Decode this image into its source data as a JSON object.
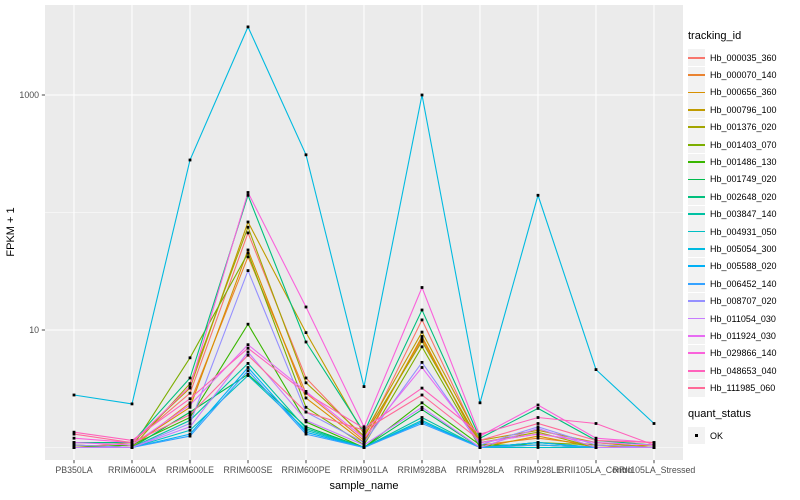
{
  "chart_data": {
    "type": "line",
    "title": "",
    "x_axis": {
      "label": "sample_name",
      "categories": [
        "PB350LA",
        "RRIM600LA",
        "RRIM600LE",
        "RRIM600SE",
        "RRIM600PE",
        "RRIM901LA",
        "RRIM928BA",
        "RRIM928LA",
        "RRIM928LE",
        "RRII105LA_Control",
        "RRII105LA_Stressed"
      ]
    },
    "y_axis": {
      "label": "FPKM + 1",
      "scale": "log10",
      "ticks": [
        {
          "label": "1000",
          "value": 1000
        },
        {
          "label": "10",
          "value": 10
        }
      ],
      "minor_gridlines": [
        100,
        1
      ],
      "range_approx": [
        0.8,
        5800
      ]
    },
    "legend": {
      "title": "tracking_id",
      "position": "right"
    },
    "legend2": {
      "title": "quant_status",
      "items": [
        {
          "label": "OK",
          "marker": "black-square"
        }
      ]
    },
    "panel_background": "#EBEBEB",
    "gridline_color": "#FFFFFF",
    "point_color": "#000000",
    "tick_label_color": "#4D4D4D",
    "series": [
      {
        "name": "Hb_000035_360",
        "color": "#F8766D",
        "values": [
          1.0,
          1.1,
          2.9,
          67,
          3.9,
          1.2,
          12.2,
          1.1,
          1.3,
          1.1,
          1.0
        ]
      },
      {
        "name": "Hb_000070_140",
        "color": "#EA8331",
        "values": [
          1.05,
          1.0,
          2.4,
          42,
          2.9,
          1.15,
          8.4,
          1.05,
          1.2,
          1.05,
          1.0
        ]
      },
      {
        "name": "Hb_000656_360",
        "color": "#D89000",
        "values": [
          1.0,
          1.05,
          2.2,
          48,
          2.64,
          1.1,
          8.8,
          1.0,
          1.25,
          1.0,
          1.05
        ]
      },
      {
        "name": "Hb_000796_100",
        "color": "#C09B00",
        "values": [
          1.1,
          1.1,
          3.2,
          83,
          9.5,
          1.3,
          9.6,
          1.15,
          1.4,
          1.1,
          1.0
        ]
      },
      {
        "name": "Hb_001376_020",
        "color": "#A3A500",
        "values": [
          1.0,
          1.0,
          3.5,
          75,
          3.55,
          1.25,
          8.0,
          1.1,
          1.35,
          1.0,
          1.0
        ]
      },
      {
        "name": "Hb_001403_070",
        "color": "#7CAE00",
        "values": [
          1.05,
          1.0,
          5.8,
          45,
          2.2,
          1.05,
          7.2,
          1.0,
          1.1,
          1.05,
          1.0
        ]
      },
      {
        "name": "Hb_001486_130",
        "color": "#39B600",
        "values": [
          1.0,
          1.05,
          1.8,
          11.2,
          1.65,
          1.0,
          2.4,
          1.05,
          1.05,
          1.0,
          1.0
        ]
      },
      {
        "name": "Hb_001749_020",
        "color": "#00BB4E",
        "values": [
          1.0,
          1.0,
          2.0,
          4.2,
          1.5,
          1.0,
          2.1,
          1.0,
          1.1,
          1.0,
          1.0
        ]
      },
      {
        "name": "Hb_002648_020",
        "color": "#00BF7D",
        "values": [
          1.1,
          1.1,
          3.9,
          140,
          7.9,
          1.35,
          14.8,
          1.2,
          2.15,
          1.15,
          1.05
        ]
      },
      {
        "name": "Hb_003847_140",
        "color": "#00C1A3",
        "values": [
          1.0,
          1.0,
          1.7,
          5.2,
          1.45,
          1.0,
          1.8,
          1.0,
          1.05,
          1.0,
          1.0
        ]
      },
      {
        "name": "Hb_004931_050",
        "color": "#00BFC4",
        "values": [
          1.0,
          1.0,
          1.4,
          4.1,
          1.4,
          1.0,
          1.7,
          1.0,
          1.0,
          1.0,
          1.0
        ]
      },
      {
        "name": "Hb_005054_300",
        "color": "#00BAE0",
        "values": [
          2.8,
          2.35,
          280,
          3800,
          310,
          3.3,
          1000,
          2.4,
          140,
          4.6,
          1.6
        ]
      },
      {
        "name": "Hb_005588_020",
        "color": "#00B0F6",
        "values": [
          1.0,
          1.0,
          1.3,
          4.8,
          1.35,
          1.0,
          1.65,
          1.0,
          1.1,
          1.0,
          1.0
        ]
      },
      {
        "name": "Hb_006452_140",
        "color": "#35A2FF",
        "values": [
          1.0,
          1.0,
          1.25,
          4.5,
          1.3,
          1.0,
          1.6,
          1.0,
          1.05,
          1.0,
          1.0
        ]
      },
      {
        "name": "Hb_008707_020",
        "color": "#9590FF",
        "values": [
          1.05,
          1.0,
          1.6,
          32,
          2.0,
          1.1,
          5.3,
          1.05,
          1.5,
          1.05,
          1.0
        ]
      },
      {
        "name": "Hb_011054_030",
        "color": "#C77CFF",
        "values": [
          1.0,
          1.0,
          1.5,
          6.5,
          1.7,
          1.05,
          2.2,
          1.0,
          1.45,
          1.0,
          1.0
        ]
      },
      {
        "name": "Hb_011924_030",
        "color": "#E76BF3",
        "values": [
          1.1,
          1.05,
          2.3,
          7.5,
          3.0,
          1.2,
          4.8,
          1.1,
          1.3,
          1.1,
          1.05
        ]
      },
      {
        "name": "Hb_029866_140",
        "color": "#FA62DB",
        "values": [
          1.2,
          1.1,
          3.3,
          148,
          15.7,
          1.5,
          23,
          1.25,
          2.3,
          1.2,
          1.1
        ]
      },
      {
        "name": "Hb_048653_040",
        "color": "#FF62BC",
        "values": [
          1.35,
          1.15,
          2.6,
          7.0,
          2.9,
          1.45,
          3.2,
          1.3,
          1.8,
          1.6,
          1.05
        ]
      },
      {
        "name": "Hb_111985_060",
        "color": "#FF6A98",
        "values": [
          1.3,
          1.1,
          1.9,
          6.1,
          2.0,
          1.4,
          2.8,
          1.15,
          1.6,
          1.15,
          1.1
        ]
      }
    ]
  }
}
